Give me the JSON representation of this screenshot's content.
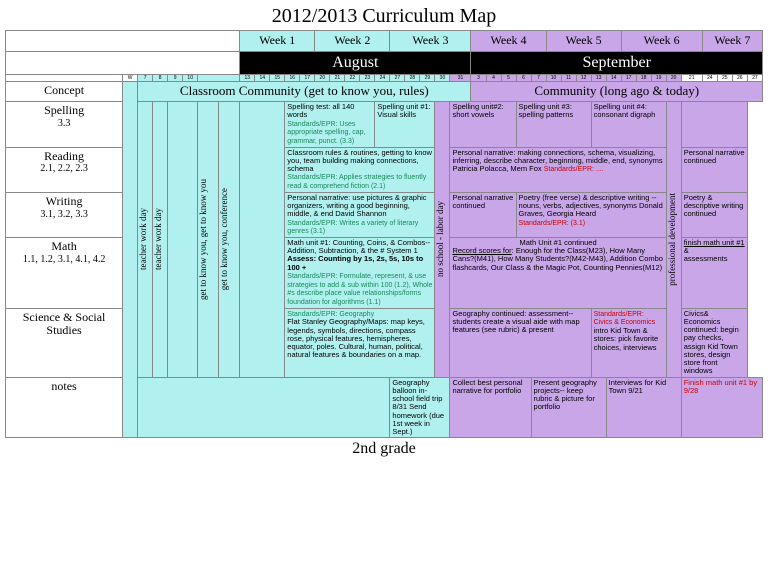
{
  "title": "2012/2013 Curriculum Map",
  "footer": "2nd grade",
  "weeks": [
    "Week 1",
    "Week 2",
    "Week 3",
    "Week 4",
    "Week 5",
    "Week 6",
    "Week 7"
  ],
  "months": {
    "aug": "August",
    "sep": "September"
  },
  "dateLetter": "W",
  "datesA": [
    "7",
    "8",
    "9",
    "10"
  ],
  "datesB": [
    "13",
    "14",
    "15",
    "16",
    "17",
    "20",
    "21",
    "22",
    "23",
    "24",
    "27",
    "28",
    "29",
    "30"
  ],
  "datesSepLast": "31",
  "datesC": [
    "3",
    "4",
    "5",
    "6",
    "7",
    "10",
    "11",
    "12",
    "13",
    "14",
    "17",
    "18",
    "19",
    "20",
    "21"
  ],
  "datesD": [
    "24",
    "25",
    "26",
    "27",
    "28"
  ],
  "rowLabels": {
    "concept": "Concept",
    "spelling": {
      "t": "Spelling",
      "s": "3.3"
    },
    "reading": {
      "t": "Reading",
      "s": "2.1, 2.2, 2.3"
    },
    "writing": {
      "t": "Writing",
      "s": "3.1, 3.2, 3.3"
    },
    "math": {
      "t": "Math",
      "s": "1.1, 1.2, 3.1, 4.1, 4.2"
    },
    "science": {
      "t": "Science & Social Studies",
      "s": ""
    },
    "notes": {
      "t": "notes",
      "s": ""
    }
  },
  "vert": {
    "twd1": "teacher work day",
    "twd2": "teacher work day",
    "gtky": "get to know you, get to know you",
    "conf": "get to know you, conference",
    "noschool": "no school - labor day",
    "pd": "professional development"
  },
  "concepts": {
    "classroom": "Classroom Community (get to know you, rules)",
    "community": "Community (long ago & today)"
  },
  "cells": {
    "sp_w2": {
      "t": "Spelling test: all 140 words",
      "s": "Standards/EPR: Uses appropriate spelling, cap, grammar, punct. (3.3)"
    },
    "sp_w3": "Spelling unit #1: Visual skills",
    "sp_w4": "Spelling unit#2: short vowels",
    "sp_w5": "Spelling unit #3: spelling patterns",
    "sp_w6": "Spelling unit #4: consonant digraph",
    "rd_w23": {
      "t": "Classroom rules & routines, getting to know you, team building\nmaking connections, schema",
      "s": "Standards/EPR: Applies strategies to fluently read & comprehend fiction (2.1)"
    },
    "rd_w456": {
      "t": "Personal narrative: making connections, schema, visualizing, inferring, describe character, beginning, middle, end, synonyms\nPatricia Polacca, Mem Fox",
      "s": "Standards/EPR: ...."
    },
    "rd_w7": "Personal narrative continued",
    "wr_w23": {
      "t": "Personal narrative: use pictures & graphic organizers, writing a good beginning, middle, & end         David Shannon",
      "s": "Standards/EPR: Writes a variety of literary genres (3.1)"
    },
    "wr_w4": "Personal narrative continued",
    "wr_w56": {
      "t": "Poetry (free verse) & descriptive writing -- nouns, verbs, adjectives, synonyms\nDonald Graves, Georgia Heard",
      "s": "Standards/EPR: (3.1)"
    },
    "wr_w7": "Poetry & descriptive writing continued",
    "ma_w23": {
      "t1": "Math unit #1: Counting, Coins, & Combos--Addition, Subtraction, & the # System 1",
      "t2": "Assess: Counting by 1s, 2s, 5s, 10s to 100 +",
      "s": "Standards/EPR: Formulate, represent, & use strategies to add & sub within 100 (1.2), Whole #s describe place value relationships/forms foundation for algorithms (1.1)"
    },
    "ma_w456": {
      "t1": "Math Unit #1 continued",
      "t2": "Record scores for: Enough for the Class(M23), How Many Cans?(M41), How Many Students?(M42-M43), Addition Combo flashcards, Our Class & the Magic Pot, Counting Pennies(M12)"
    },
    "ma_w7": {
      "t": "finish math unit #1 & assessments"
    },
    "ss_w23": {
      "s": "Standards/EPR: Geography",
      "t": "Flat Stanley\nGeography/Maps: map keys, legends, symbols, directions, compass rose, physical features, hemispheres, equator, poles. Cultural, human, political, natural features & boundaries on a map."
    },
    "ss_w45": "Geography continued: assessment--students create a visual aide with map features (see rubric) & present",
    "ss_w6": {
      "s": "Standards/EPR: Civics & Economics",
      "t": "intro Kid Town & stores: pick favorite choices, interviews"
    },
    "ss_w7": "Civics& Economics continued:\nbegin pay checks, assign Kid Town stores, design store front windows",
    "no_w3": "Geography balloon in-school field trip 8/31\nSend homework (due 1st week in Sept.)",
    "no_w4": "Collect best personal narrative for portfolio",
    "no_w5": "Present geography projects-- keep rubric & picture for portfolio",
    "no_w6": "Interviews for Kid Town 9/21",
    "no_w7": "Finish math unit #1 by 9/28"
  }
}
